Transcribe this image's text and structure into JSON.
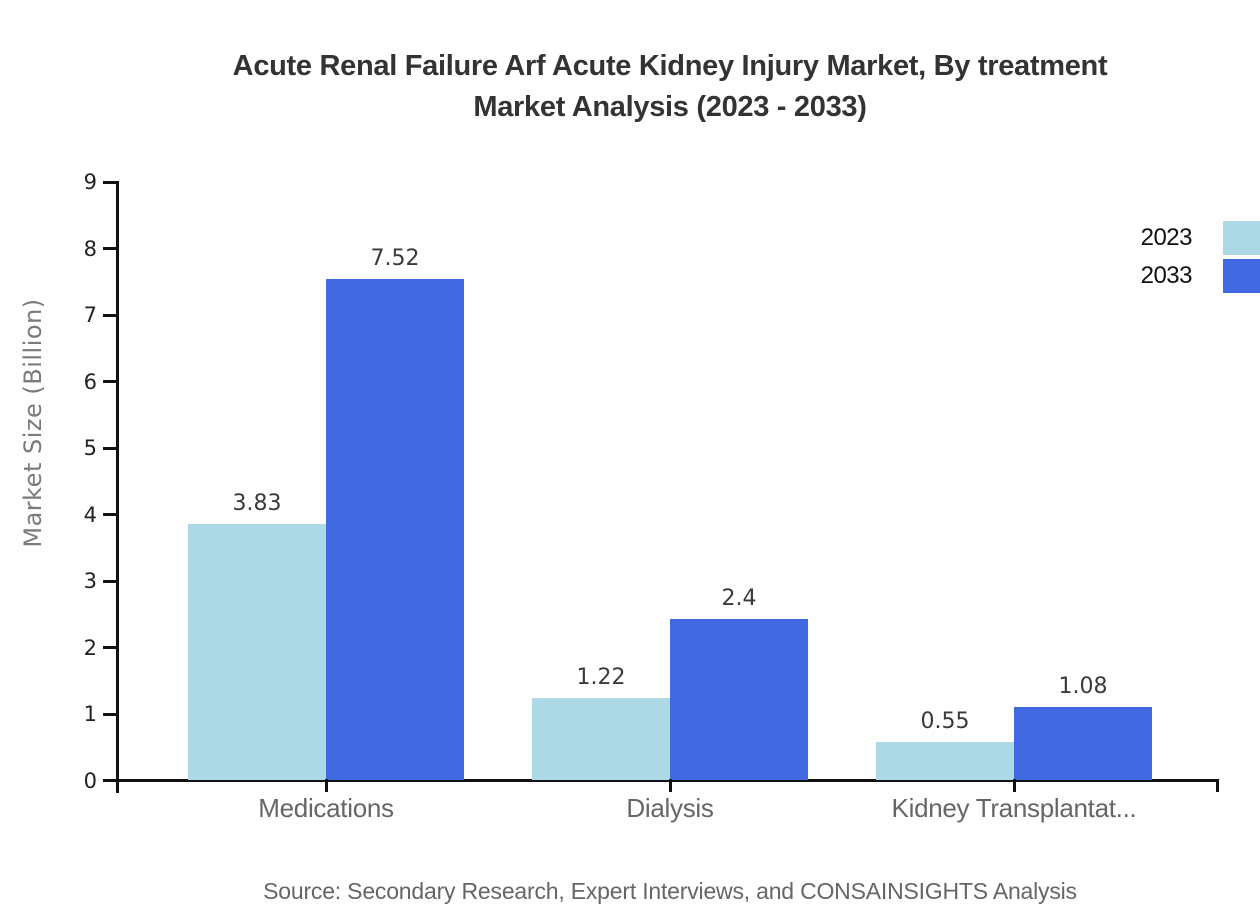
{
  "chart_data": {
    "type": "bar",
    "title": "Acute Renal Failure Arf Acute Kidney Injury Market, By treatment Market Analysis (2023 - 2033)",
    "title_lines": [
      "Acute Renal Failure Arf Acute Kidney Injury Market, By treatment",
      "Market Analysis (2023 - 2033)"
    ],
    "categories": [
      "Medications",
      "Dialysis",
      "Kidney Transplantat..."
    ],
    "series": [
      {
        "name": "2023",
        "color": "#ADD8E6",
        "values": [
          3.83,
          1.22,
          0.55
        ]
      },
      {
        "name": "2033",
        "color": "#4169E1",
        "values": [
          7.52,
          2.4,
          1.08
        ]
      }
    ],
    "xlabel": "",
    "ylabel": "Market Size (Billion)",
    "ylim": [
      0,
      9
    ],
    "yticks": [
      0,
      1,
      2,
      3,
      4,
      5,
      6,
      7,
      8,
      9
    ],
    "grid": false,
    "legend_position": "top-right",
    "bar_value_labels_shown": true
  },
  "legend": {
    "entries": [
      {
        "label": "2023",
        "color": "#ADD8E6"
      },
      {
        "label": "2033",
        "color": "#4169E1"
      }
    ]
  },
  "source_note": "Source: Secondary Research, Expert Interviews, and CONSAINSIGHTS Analysis",
  "colors": {
    "series_2023": "#ADD8E6",
    "series_2033": "#4169E1",
    "axis": "#111111",
    "title_text": "#333333",
    "category_text": "#666666",
    "y_axis_title_text": "#7b7b7b",
    "tick_label_text": "#222222",
    "value_label_text": "#3a3a3a",
    "source_text": "#666666",
    "background": "#ffffff"
  }
}
